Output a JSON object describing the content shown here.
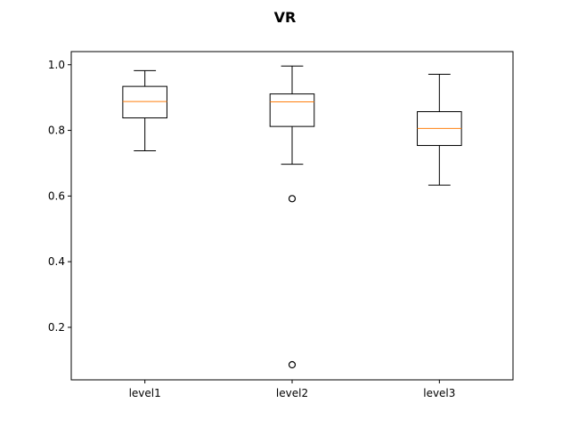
{
  "chart_data": {
    "type": "box",
    "title": "VR",
    "xlabel": "",
    "ylabel": "",
    "categories": [
      "level1",
      "level2",
      "level3"
    ],
    "ylim": [
      0.04,
      1.04
    ],
    "yticks": [
      0.2,
      0.4,
      0.6,
      0.8,
      1.0
    ],
    "ytick_labels": [
      "0.2",
      "0.4",
      "0.6",
      "0.8",
      "1.0"
    ],
    "grid": false,
    "series": [
      {
        "category": "level1",
        "whisker_low": 0.738,
        "q1": 0.838,
        "median": 0.888,
        "q3": 0.934,
        "whisker_high": 0.982,
        "outliers": []
      },
      {
        "category": "level2",
        "whisker_low": 0.697,
        "q1": 0.812,
        "median": 0.887,
        "q3": 0.911,
        "whisker_high": 0.996,
        "outliers": [
          0.592,
          0.086
        ]
      },
      {
        "category": "level3",
        "whisker_low": 0.633,
        "q1": 0.754,
        "median": 0.806,
        "q3": 0.857,
        "whisker_high": 0.971,
        "outliers": []
      }
    ]
  },
  "colors": {
    "box": "#000000",
    "median": "#ff7f0e",
    "background": "#ffffff"
  }
}
